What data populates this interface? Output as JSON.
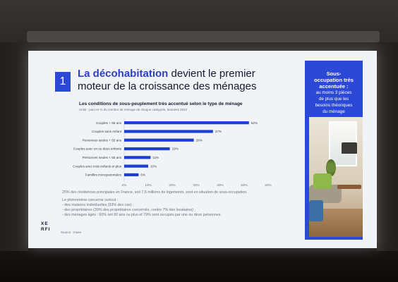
{
  "slide": {
    "number": "1",
    "title_accent": "La décohabitation",
    "title_rest": " devient le premier moteur de la croissance des ménages"
  },
  "chart_data": {
    "type": "bar",
    "orientation": "horizontal",
    "title": "Les conditions de sous-peuplement très accentué selon le type de ménage",
    "subtitle": "Unité : part en % du nombre de ménage de chaque catégorie, données 2022",
    "categories": [
      "Couples + 65 ans",
      "Couples sans enfant",
      "Personnes seules + 65 ans",
      "Couples avec un ou deux enfants",
      "Personnes seules < 65 ans",
      "Couples avec trois enfants et plus",
      "Familles monoparentales"
    ],
    "values": [
      52,
      37,
      29,
      19,
      11,
      10,
      6
    ],
    "value_labels": [
      "52%",
      "37%",
      "29%",
      "19%",
      "11%",
      "10%",
      "6%"
    ],
    "xlim": [
      0,
      60
    ],
    "x_ticks": [
      "0%",
      "10%",
      "20%",
      "30%",
      "40%",
      "50%",
      "60%"
    ],
    "bar_color": "#1d3fcf"
  },
  "notes": {
    "main": "25% des résidences principales en France, soit 7,6 millions de logements, sont en situation de sous-occupation.",
    "lines": [
      "Le phénomène concerne surtout :",
      "- des maisons individuelles (93% des cas) ;",
      "- des propriétaires (39% des propriétaires concernés, contre 7% des locataires) ;",
      "- des ménages âgés : 60% ont 60 ans ou plus et 79% sont occupés par une ou deux personnes."
    ]
  },
  "logo": {
    "line1": "XE",
    "line2": "RFI"
  },
  "source": "Source : Insee",
  "side_panel": {
    "bold_lines": [
      "Sous-",
      "occupation très",
      "accentuée :"
    ],
    "light_lines": [
      "au moins 3 pièces",
      "de plus que les",
      "besoins théoriques",
      "du ménage"
    ],
    "color": "#2c48d6"
  }
}
